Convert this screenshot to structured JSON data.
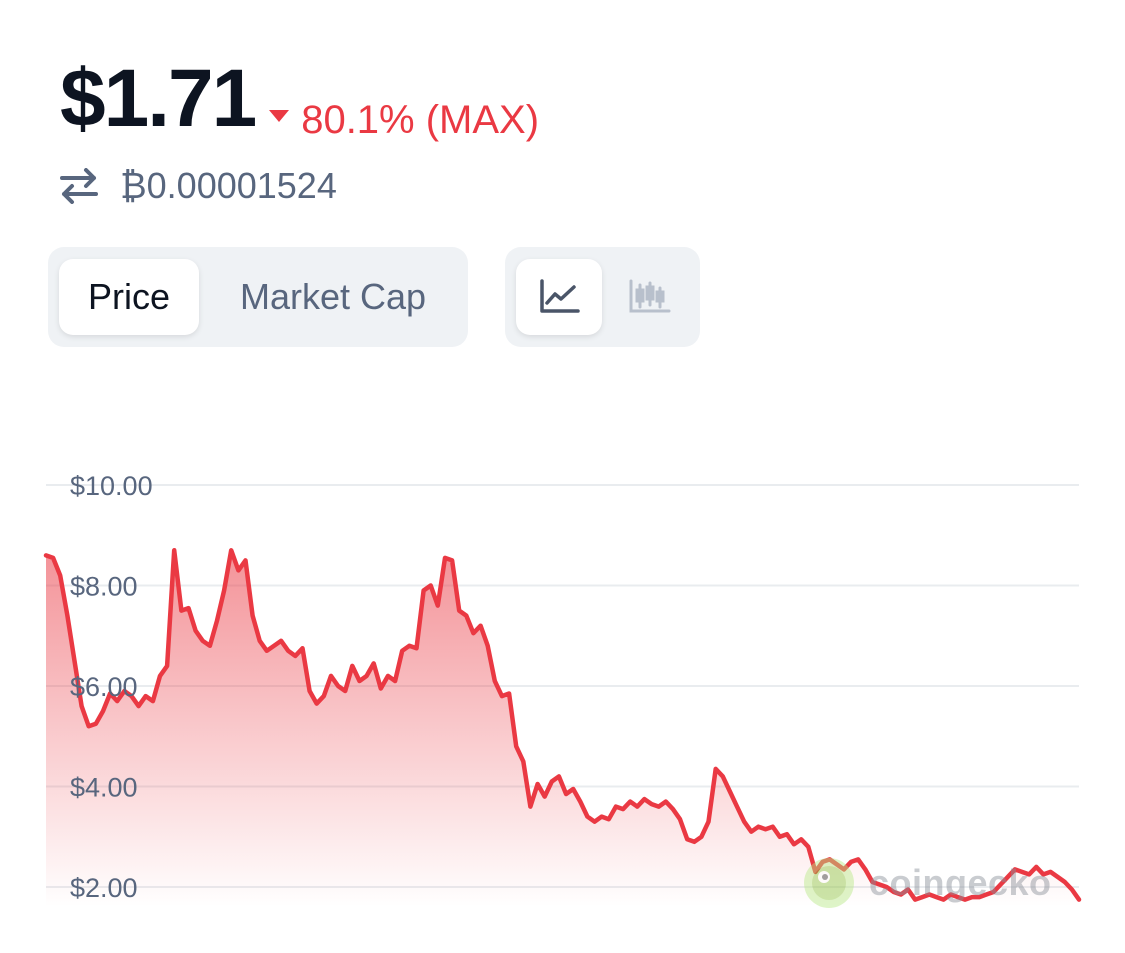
{
  "header": {
    "price": "$1.71",
    "change": "80.1% (MAX)",
    "change_direction": "down",
    "btc_price": "₿0.00001524"
  },
  "tabs": {
    "price_label": "Price",
    "market_cap_label": "Market Cap",
    "active": "Price"
  },
  "chart_view": {
    "line_icon": "line-chart-icon",
    "candle_icon": "candlestick-icon",
    "active": "line"
  },
  "watermark": {
    "text": "coingecko"
  },
  "colors": {
    "line": "#ea3943",
    "text": "#0d1421",
    "muted": "#58667e",
    "grid": "#e9ecef",
    "segment_bg": "#eff2f5"
  },
  "chart_data": {
    "type": "area",
    "title": "",
    "xlabel": "",
    "ylabel": "",
    "ylim": [
      1.75,
      10.0
    ],
    "y_ticks": [
      "$2.00",
      "$4.00",
      "$6.00",
      "$8.00",
      "$10.00"
    ],
    "y_tick_values": [
      2,
      4,
      6,
      8,
      10
    ],
    "grid": true,
    "series": [
      {
        "values": [
          8.6,
          8.55,
          8.2,
          7.4,
          6.5,
          5.6,
          5.2,
          5.25,
          5.5,
          5.85,
          5.7,
          5.9,
          5.8,
          5.6,
          5.8,
          5.7,
          6.2,
          6.4,
          8.7,
          7.5,
          7.55,
          7.1,
          6.9,
          6.8,
          7.3,
          7.9,
          8.7,
          8.3,
          8.5,
          7.4,
          6.9,
          6.7,
          6.8,
          6.9,
          6.7,
          6.6,
          6.75,
          5.9,
          5.65,
          5.8,
          6.2,
          6.0,
          5.9,
          6.4,
          6.1,
          6.2,
          6.45,
          5.95,
          6.2,
          6.1,
          6.7,
          6.8,
          6.75,
          7.9,
          8.0,
          7.6,
          8.55,
          8.5,
          7.5,
          7.4,
          7.05,
          7.2,
          6.8,
          6.1,
          5.8,
          5.85,
          4.8,
          4.5,
          3.6,
          4.05,
          3.8,
          4.1,
          4.2,
          3.85,
          3.95,
          3.7,
          3.4,
          3.3,
          3.4,
          3.35,
          3.6,
          3.55,
          3.7,
          3.6,
          3.75,
          3.65,
          3.6,
          3.7,
          3.55,
          3.35,
          2.95,
          2.9,
          3.0,
          3.3,
          4.35,
          4.2,
          3.9,
          3.6,
          3.3,
          3.1,
          3.2,
          3.15,
          3.2,
          3.0,
          3.05,
          2.85,
          2.95,
          2.8,
          2.3,
          2.5,
          2.55,
          2.45,
          2.35,
          2.5,
          2.55,
          2.35,
          2.1,
          2.05,
          2.0,
          1.9,
          1.85,
          1.95,
          1.75,
          1.8,
          1.85,
          1.8,
          1.75,
          1.85,
          1.8,
          1.75,
          1.8,
          1.8,
          1.85,
          1.9,
          2.05,
          2.2,
          2.35,
          2.3,
          2.25,
          2.4,
          2.25,
          2.3,
          2.2,
          2.1,
          1.95,
          1.75
        ]
      }
    ]
  }
}
